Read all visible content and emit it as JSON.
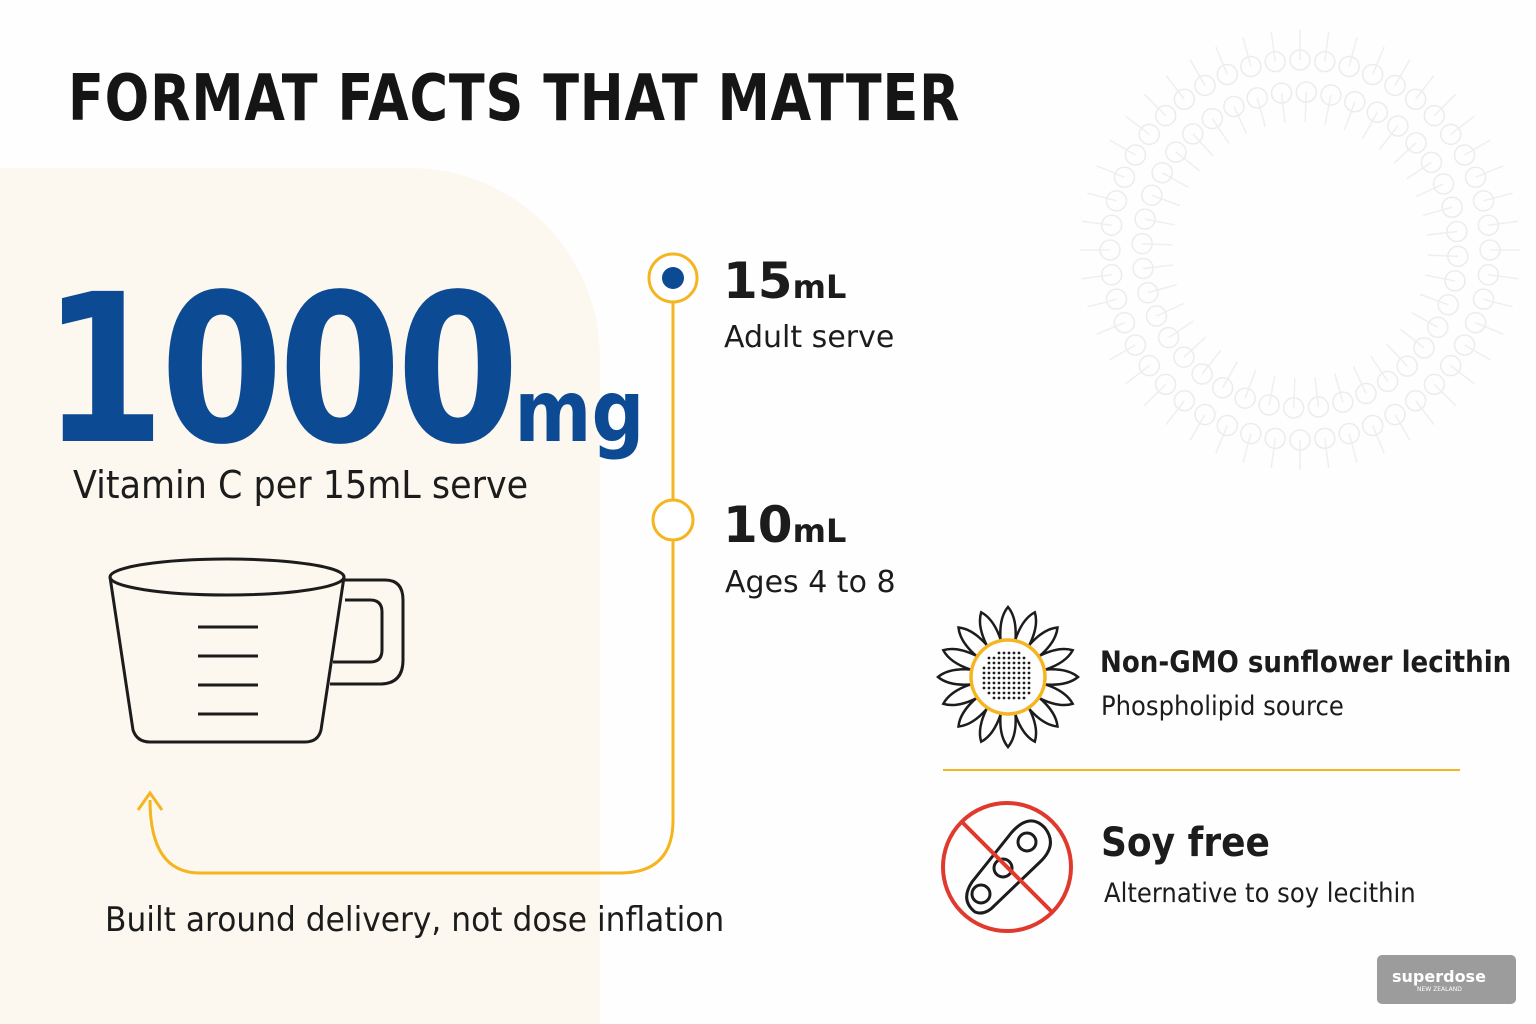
{
  "header": {
    "title": "FORMAT FACTS THAT MATTER"
  },
  "dose": {
    "amount": "1000",
    "unit": "mg",
    "caption": "Vitamin C per 15mL serve"
  },
  "timeline": [
    {
      "amount": "15",
      "unit": "mL",
      "label": "Adult serve"
    },
    {
      "amount": "10",
      "unit": "mL",
      "label": "Ages 4 to 8"
    }
  ],
  "footer": "Built around delivery, not dose inflation",
  "features": [
    {
      "title": "Non-GMO sunflower lecithin",
      "subtitle": "Phospholipid source"
    },
    {
      "title": "Soy free",
      "subtitle": "Alternative to soy lecithin"
    }
  ],
  "logo": {
    "brand": "superdose",
    "region": "NEW ZEALAND"
  }
}
